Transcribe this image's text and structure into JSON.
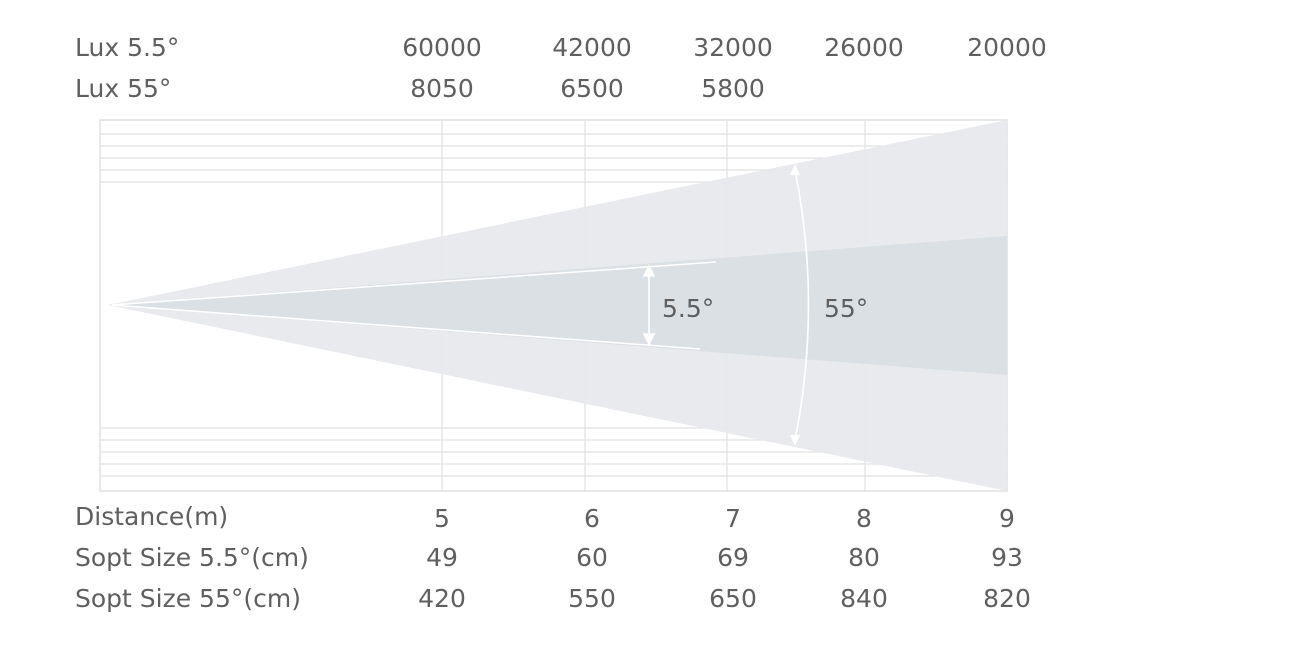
{
  "rows": {
    "lux_5_5": {
      "label": "Lux 5.5°",
      "values": [
        "60000",
        "42000",
        "32000",
        "26000",
        "20000"
      ]
    },
    "lux_55": {
      "label": "Lux 55°",
      "values": [
        "8050",
        "6500",
        "5800",
        "",
        ""
      ]
    },
    "distance": {
      "label": "Distance(m)",
      "values": [
        "5",
        "6",
        "7",
        "8",
        "9"
      ]
    },
    "spot_5_5": {
      "label": "Sopt Size 5.5°(cm)",
      "values": [
        "49",
        "60",
        "69",
        "80",
        "93"
      ]
    },
    "spot_55": {
      "label": "Sopt Size 55°(cm)",
      "values": [
        "420",
        "550",
        "650",
        "840",
        "820"
      ]
    }
  },
  "beam": {
    "narrow_angle_label": "5.5°",
    "wide_angle_label": "55°"
  },
  "colors": {
    "wide_beam": "#e6e8eb",
    "narrow_beam": "#dadfe5",
    "grid": "#e1e1e1",
    "text": "#5f5f5f"
  }
}
